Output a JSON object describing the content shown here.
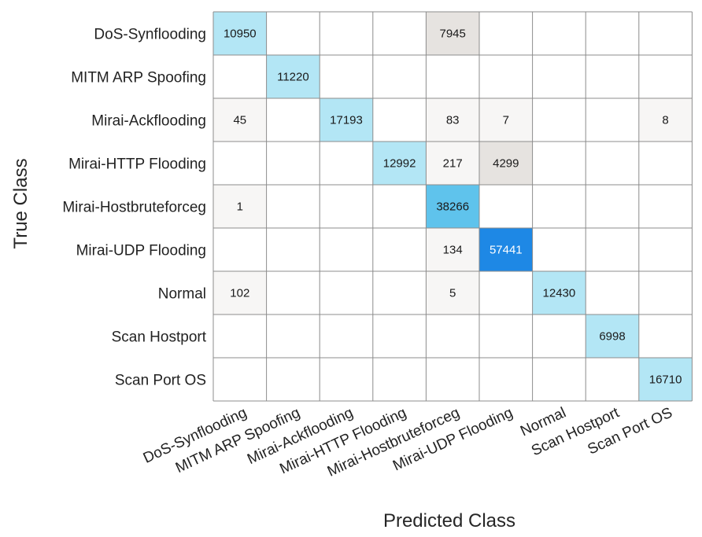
{
  "chart_data": {
    "type": "heatmap",
    "title": "",
    "xlabel": "Predicted Class",
    "ylabel": "True Class",
    "grid": true,
    "legend": "none",
    "x_categories": [
      "DoS-Synflooding",
      "MITM ARP Spoofing",
      "Mirai-Ackflooding",
      "Mirai-HTTP Flooding",
      "Mirai-Hostbruteforceg",
      "Mirai-UDP Flooding",
      "Normal",
      "Scan Hostport",
      "Scan Port OS"
    ],
    "y_categories": [
      "DoS-Synflooding",
      "MITM ARP Spoofing",
      "Mirai-Ackflooding",
      "Mirai-HTTP Flooding",
      "Mirai-Hostbruteforceg",
      "Mirai-UDP Flooding",
      "Normal",
      "Scan Hostport",
      "Scan Port OS"
    ],
    "values": [
      [
        10950,
        null,
        null,
        null,
        7945,
        null,
        null,
        null,
        null
      ],
      [
        null,
        11220,
        null,
        null,
        null,
        null,
        null,
        null,
        null
      ],
      [
        45,
        null,
        17193,
        null,
        83,
        7,
        null,
        null,
        8
      ],
      [
        null,
        null,
        null,
        12992,
        217,
        4299,
        null,
        null,
        null
      ],
      [
        1,
        null,
        null,
        null,
        38266,
        null,
        null,
        null,
        null
      ],
      [
        null,
        null,
        null,
        null,
        134,
        57441,
        null,
        null,
        null
      ],
      [
        102,
        null,
        null,
        null,
        5,
        null,
        12430,
        null,
        null
      ],
      [
        null,
        null,
        null,
        null,
        null,
        null,
        null,
        6998,
        null
      ],
      [
        null,
        null,
        null,
        null,
        null,
        null,
        null,
        null,
        16710
      ]
    ],
    "colors": {
      "diagonal_light": "#b3e6f5",
      "diagonal_mid": "#5fc3ec",
      "diagonal_dark": "#1e88e5",
      "offdiag_strong": "#e6e3e0",
      "offdiag_weak": "#f7f6f5",
      "empty": "#ffffff",
      "grid": "#8c8c8c"
    }
  }
}
